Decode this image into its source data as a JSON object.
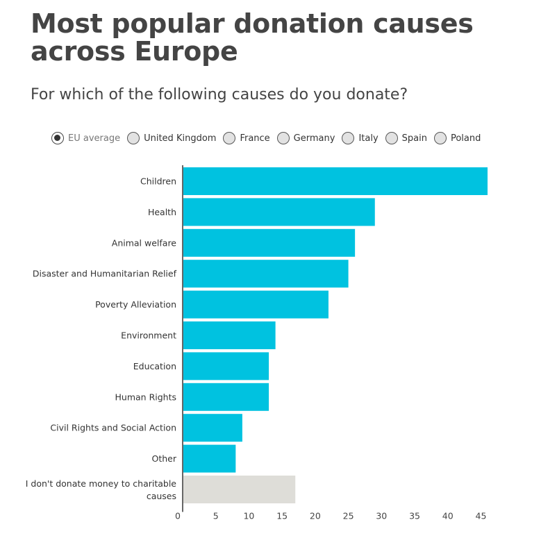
{
  "title": "Most popular donation causes across Europe",
  "subtitle": "For which of the following causes do you donate?",
  "selector": {
    "options": [
      "EU average",
      "United Kingdom",
      "France",
      "Germany",
      "Italy",
      "Spain",
      "Poland"
    ],
    "selected": "EU average"
  },
  "colors": {
    "bar": "#00c2e0",
    "bar_muted": "#deddd8",
    "axis": "#333333"
  },
  "chart_data": {
    "type": "bar",
    "orientation": "horizontal",
    "title": "Most popular donation causes across Europe",
    "subtitle": "For which of the following causes do you donate?",
    "categories": [
      "Children",
      "Health",
      "Animal welfare",
      "Disaster and Humanitarian Relief",
      "Poverty Alleviation",
      "Environment",
      "Education",
      "Human Rights",
      "Civil Rights and Social Action",
      "Other",
      "I don't donate money to charitable causes"
    ],
    "values": [
      46,
      29,
      26,
      25,
      22,
      14,
      13,
      13,
      9,
      8,
      17
    ],
    "muted_categories": [
      "I don't donate money to charitable causes"
    ],
    "xlim": [
      0,
      46
    ],
    "xticks": [
      0,
      5,
      10,
      15,
      20,
      25,
      30,
      35,
      40,
      45
    ],
    "xlabel": "",
    "ylabel": "",
    "grid": false,
    "legend": "top"
  }
}
